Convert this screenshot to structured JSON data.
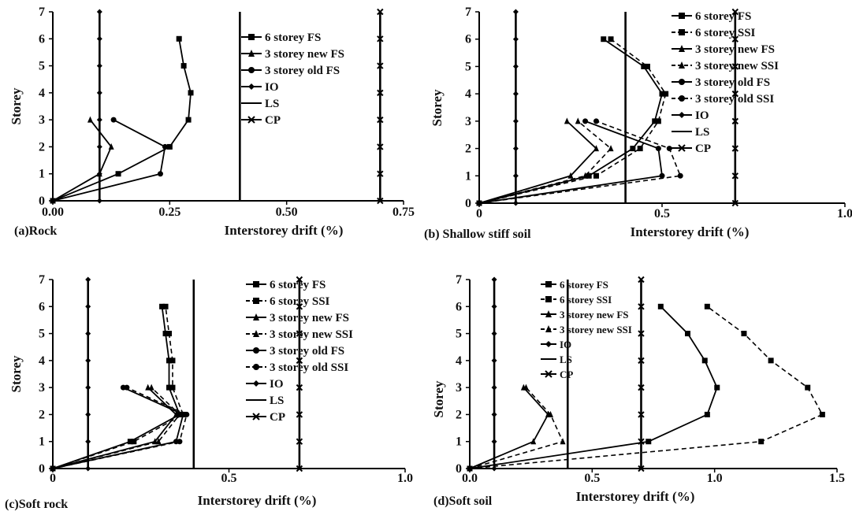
{
  "chart_data": [
    {
      "type": "line",
      "caption": "(a)Rock",
      "xlabel": "Interstorey drift (%)",
      "ylabel": "Storey",
      "xlim": [
        0,
        0.75
      ],
      "ylim": [
        0,
        7
      ],
      "xticks": [
        "0.00",
        "0.25",
        "0.50",
        "0.75"
      ],
      "yticks": [
        "0",
        "1",
        "2",
        "3",
        "4",
        "5",
        "6",
        "7"
      ],
      "grid": false,
      "legend_position": "top-right",
      "series": [
        {
          "name": "6 storey FS",
          "marker": "square",
          "dash": "solid",
          "x": [
            0,
            0.14,
            0.25,
            0.29,
            0.295,
            0.28,
            0.27
          ],
          "y": [
            0,
            1,
            2,
            3,
            4,
            5,
            6
          ]
        },
        {
          "name": "3 storey new FS",
          "marker": "triangle",
          "dash": "solid",
          "x": [
            0,
            0.1,
            0.125,
            0.08
          ],
          "y": [
            0,
            1,
            2,
            3
          ]
        },
        {
          "name": "3 storey old FS",
          "marker": "circle",
          "dash": "solid",
          "x": [
            0,
            0.23,
            0.24,
            0.13
          ],
          "y": [
            0,
            1,
            2,
            3
          ]
        },
        {
          "name": "IO",
          "marker": "diamond",
          "dash": "solid",
          "x": [
            0.1,
            0.1,
            0.1,
            0.1,
            0.1,
            0.1,
            0.1,
            0.1
          ],
          "y": [
            0,
            1,
            2,
            3,
            4,
            5,
            6,
            7
          ]
        },
        {
          "name": "LS",
          "marker": "none",
          "dash": "solid",
          "x": [
            0.4,
            0.4
          ],
          "y": [
            0,
            7
          ]
        },
        {
          "name": "CP",
          "marker": "x",
          "dash": "solid",
          "x": [
            0.7,
            0.7,
            0.7,
            0.7,
            0.7,
            0.7,
            0.7,
            0.7
          ],
          "y": [
            0,
            1,
            2,
            3,
            4,
            5,
            6,
            7
          ]
        }
      ]
    },
    {
      "type": "line",
      "caption": "(b) Shallow stiff soil",
      "xlabel": "Interstorey drift (%)",
      "ylabel": "Storey",
      "xlim": [
        0,
        1.0
      ],
      "ylim": [
        0,
        7
      ],
      "xticks": [
        "0",
        "0.5",
        "1.0"
      ],
      "yticks": [
        "0",
        "1",
        "2",
        "3",
        "4",
        "5",
        "6",
        "7"
      ],
      "grid": false,
      "legend_position": "top-right",
      "series": [
        {
          "name": "6 storey FS",
          "marker": "square",
          "dash": "solid",
          "x": [
            0,
            0.3,
            0.42,
            0.48,
            0.5,
            0.45,
            0.34
          ],
          "y": [
            0,
            1,
            2,
            3,
            4,
            5,
            6
          ]
        },
        {
          "name": "6 storey SSI",
          "marker": "square",
          "dash": "dashed",
          "x": [
            0,
            0.32,
            0.44,
            0.49,
            0.51,
            0.46,
            0.36
          ],
          "y": [
            0,
            1,
            2,
            3,
            4,
            5,
            6
          ]
        },
        {
          "name": "3 storey new FS",
          "marker": "triangle",
          "dash": "solid",
          "x": [
            0,
            0.25,
            0.32,
            0.24
          ],
          "y": [
            0,
            1,
            2,
            3
          ]
        },
        {
          "name": "3 storey new SSI",
          "marker": "triangle",
          "dash": "dashed",
          "x": [
            0,
            0.29,
            0.36,
            0.27
          ],
          "y": [
            0,
            1,
            2,
            3
          ]
        },
        {
          "name": "3 storey old FS",
          "marker": "circle",
          "dash": "solid",
          "x": [
            0,
            0.5,
            0.49,
            0.29
          ],
          "y": [
            0,
            1,
            2,
            3
          ]
        },
        {
          "name": "3 storey old SSI",
          "marker": "circle",
          "dash": "dashed",
          "x": [
            0,
            0.55,
            0.52,
            0.32
          ],
          "y": [
            0,
            1,
            2,
            3
          ]
        },
        {
          "name": "IO",
          "marker": "diamond",
          "dash": "solid",
          "x": [
            0.1,
            0.1,
            0.1,
            0.1,
            0.1,
            0.1,
            0.1,
            0.1
          ],
          "y": [
            0,
            1,
            2,
            3,
            4,
            5,
            6,
            7
          ]
        },
        {
          "name": "LS",
          "marker": "none",
          "dash": "solid",
          "x": [
            0.4,
            0.4
          ],
          "y": [
            0,
            7
          ]
        },
        {
          "name": "CP",
          "marker": "x",
          "dash": "solid",
          "x": [
            0.7,
            0.7,
            0.7,
            0.7,
            0.7,
            0.7,
            0.7,
            0.7
          ],
          "y": [
            0,
            1,
            2,
            3,
            4,
            5,
            6,
            7
          ]
        }
      ]
    },
    {
      "type": "line",
      "caption": "(c)Soft rock",
      "xlabel": "Interstorey drift (%)",
      "ylabel": "Storey",
      "xlim": [
        0,
        1.0
      ],
      "ylim": [
        0,
        7
      ],
      "xticks": [
        "0",
        "0.5",
        "1.0"
      ],
      "yticks": [
        "0",
        "1",
        "2",
        "3",
        "4",
        "5",
        "6",
        "7"
      ],
      "grid": false,
      "legend_position": "top-right",
      "series": [
        {
          "name": "6 storey FS",
          "marker": "square",
          "dash": "solid",
          "x": [
            0,
            0.22,
            0.36,
            0.33,
            0.33,
            0.32,
            0.31
          ],
          "y": [
            0,
            1,
            2,
            3,
            4,
            5,
            6
          ]
        },
        {
          "name": "6 storey SSI",
          "marker": "square",
          "dash": "dashed",
          "x": [
            0,
            0.23,
            0.37,
            0.34,
            0.34,
            0.33,
            0.32
          ],
          "y": [
            0,
            1,
            2,
            3,
            4,
            5,
            6
          ]
        },
        {
          "name": "3 storey new FS",
          "marker": "triangle",
          "dash": "solid",
          "x": [
            0,
            0.29,
            0.35,
            0.27
          ],
          "y": [
            0,
            1,
            2,
            3
          ]
        },
        {
          "name": "3 storey new SSI",
          "marker": "triangle",
          "dash": "dashed",
          "x": [
            0,
            0.3,
            0.36,
            0.28
          ],
          "y": [
            0,
            1,
            2,
            3
          ]
        },
        {
          "name": "3 storey old FS",
          "marker": "circle",
          "dash": "solid",
          "x": [
            0,
            0.35,
            0.37,
            0.2
          ],
          "y": [
            0,
            1,
            2,
            3
          ]
        },
        {
          "name": "3 storey old SSI",
          "marker": "circle",
          "dash": "dashed",
          "x": [
            0,
            0.36,
            0.38,
            0.21
          ],
          "y": [
            0,
            1,
            2,
            3
          ]
        },
        {
          "name": "IO",
          "marker": "diamond",
          "dash": "solid",
          "x": [
            0.1,
            0.1,
            0.1,
            0.1,
            0.1,
            0.1,
            0.1,
            0.1
          ],
          "y": [
            0,
            1,
            2,
            3,
            4,
            5,
            6,
            7
          ]
        },
        {
          "name": "LS",
          "marker": "none",
          "dash": "solid",
          "x": [
            0.4,
            0.4
          ],
          "y": [
            0,
            7
          ]
        },
        {
          "name": "CP",
          "marker": "x",
          "dash": "solid",
          "x": [
            0.7,
            0.7,
            0.7,
            0.7,
            0.7,
            0.7,
            0.7,
            0.7
          ],
          "y": [
            0,
            1,
            2,
            3,
            4,
            5,
            6,
            7
          ]
        }
      ]
    },
    {
      "type": "line",
      "caption": "(d)Soft soil",
      "xlabel": "Interstorey drift (%)",
      "ylabel": "Storey",
      "xlim": [
        0,
        1.5
      ],
      "ylim": [
        0,
        7
      ],
      "xticks": [
        "0.0",
        "0.5",
        "1.0",
        "1.5"
      ],
      "yticks": [
        "0",
        "1",
        "2",
        "3",
        "4",
        "5",
        "6",
        "7"
      ],
      "grid": false,
      "legend_position": "top-right",
      "series": [
        {
          "name": "6 storey FS",
          "marker": "square",
          "dash": "solid",
          "x": [
            0,
            0.73,
            0.97,
            1.01,
            0.96,
            0.89,
            0.78
          ],
          "y": [
            0,
            1,
            2,
            3,
            4,
            5,
            6
          ]
        },
        {
          "name": "6 storey SSI",
          "marker": "square",
          "dash": "dashed",
          "x": [
            0,
            1.19,
            1.44,
            1.38,
            1.23,
            1.12,
            0.97
          ],
          "y": [
            0,
            1,
            2,
            3,
            4,
            5,
            6
          ]
        },
        {
          "name": "3 storey new FS",
          "marker": "triangle",
          "dash": "solid",
          "x": [
            0,
            0.26,
            0.32,
            0.22
          ],
          "y": [
            0,
            1,
            2,
            3
          ]
        },
        {
          "name": "3 storey new SSI",
          "marker": "triangle",
          "dash": "dashed",
          "x": [
            0,
            0.38,
            0.33,
            0.23
          ],
          "y": [
            0,
            1,
            2,
            3
          ]
        },
        {
          "name": "IO",
          "marker": "diamond",
          "dash": "solid",
          "x": [
            0.1,
            0.1,
            0.1,
            0.1,
            0.1,
            0.1,
            0.1,
            0.1
          ],
          "y": [
            0,
            1,
            2,
            3,
            4,
            5,
            6,
            7
          ]
        },
        {
          "name": "LS",
          "marker": "none",
          "dash": "solid",
          "x": [
            0.4,
            0.4
          ],
          "y": [
            0,
            7
          ]
        },
        {
          "name": "CP",
          "marker": "x",
          "dash": "solid",
          "x": [
            0.7,
            0.7,
            0.7,
            0.7,
            0.7,
            0.7,
            0.7,
            0.7
          ],
          "y": [
            0,
            1,
            2,
            3,
            4,
            5,
            6,
            7
          ]
        }
      ]
    }
  ]
}
